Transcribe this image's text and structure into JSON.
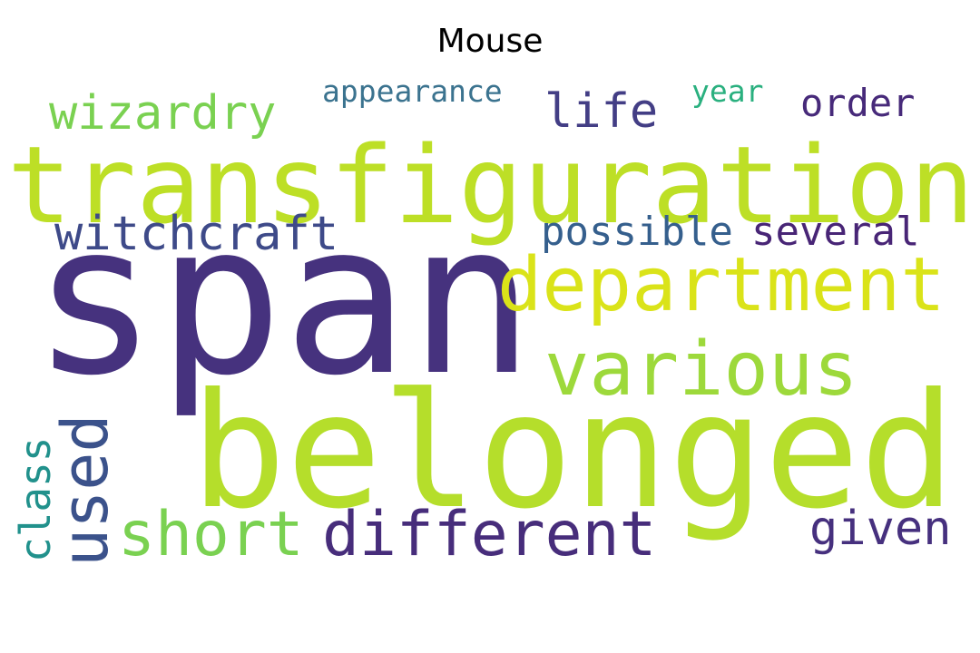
{
  "title": "Mouse",
  "words": [
    {
      "text": "span",
      "color": "#46327e"
    },
    {
      "text": "belonged",
      "color": "#b5de2b"
    },
    {
      "text": "transfiguration",
      "color": "#bddf26"
    },
    {
      "text": "department",
      "color": "#dae319"
    },
    {
      "text": "various",
      "color": "#9dd93b"
    },
    {
      "text": "different",
      "color": "#472d7b"
    },
    {
      "text": "short",
      "color": "#7ad151"
    },
    {
      "text": "used",
      "color": "#3b528b"
    },
    {
      "text": "witchcraft",
      "color": "#3e4a89"
    },
    {
      "text": "wizardry",
      "color": "#7ad151"
    },
    {
      "text": "life",
      "color": "#433e85"
    },
    {
      "text": "order",
      "color": "#472a7a"
    },
    {
      "text": "given",
      "color": "#46307e"
    },
    {
      "text": "possible",
      "color": "#355f8d"
    },
    {
      "text": "several",
      "color": "#482576"
    },
    {
      "text": "class",
      "color": "#21918c"
    },
    {
      "text": "appearance",
      "color": "#3b738f"
    },
    {
      "text": "year",
      "color": "#2ab07f"
    }
  ]
}
